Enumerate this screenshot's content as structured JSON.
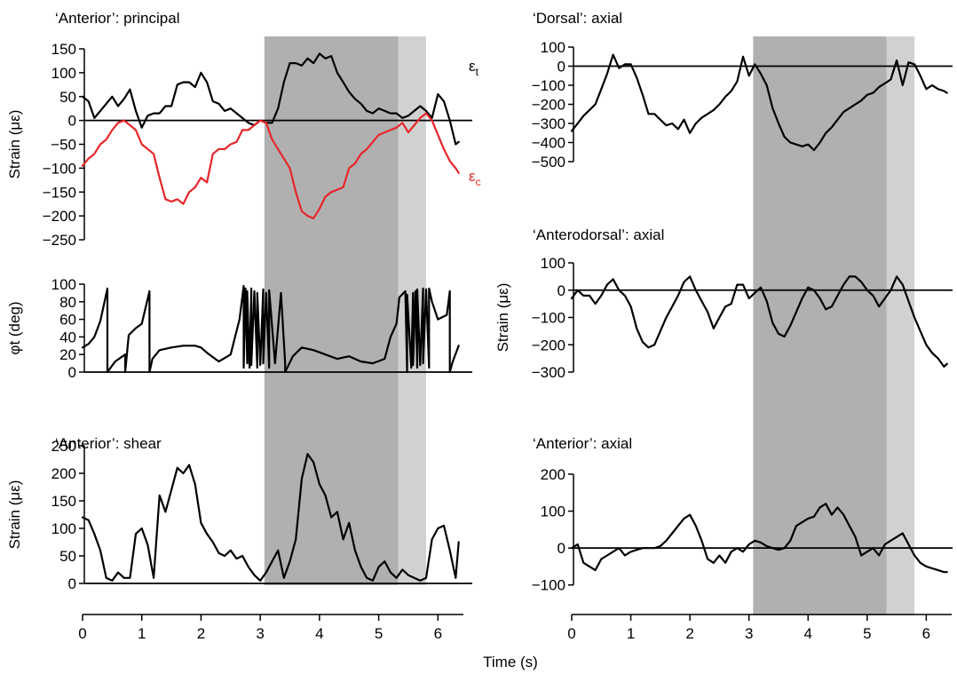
{
  "colors": {
    "dark_band": "#b0b0b0",
    "light_band": "#d0d2d1",
    "black_series": "#000000",
    "red_series": "#e8262b"
  },
  "shared_x_axis": {
    "label": "Time (s)",
    "ticks": [
      0,
      1,
      2,
      3,
      4,
      5,
      6
    ],
    "range": [
      0,
      6.4
    ]
  },
  "shaded_regions": [
    {
      "shade": "dark",
      "from": 3.07,
      "to": 5.33
    },
    {
      "shade": "light",
      "from": 5.33,
      "to": 5.8
    }
  ],
  "chart_data": [
    {
      "id": "anterior-principal",
      "type": "line",
      "title": "‘Anterior’: principal",
      "ylabel": "Strain (με)",
      "ylim": [
        -250,
        150
      ],
      "yticks": [
        150,
        100,
        50,
        0,
        -50,
        -100,
        -150,
        -200,
        -250
      ],
      "ytick_labels": [
        "150",
        "100",
        "50",
        "0",
        "−50",
        "−100",
        "−150",
        "−200",
        "−250"
      ],
      "series": [
        {
          "name": "εt",
          "color": "#000000",
          "x": [
            0,
            0.1,
            0.2,
            0.3,
            0.4,
            0.5,
            0.6,
            0.7,
            0.8,
            0.9,
            1.0,
            1.1,
            1.2,
            1.3,
            1.4,
            1.5,
            1.6,
            1.7,
            1.8,
            1.9,
            2.0,
            2.1,
            2.2,
            2.3,
            2.4,
            2.5,
            2.6,
            2.7,
            2.8,
            2.9,
            3.0,
            3.1,
            3.2,
            3.3,
            3.4,
            3.5,
            3.6,
            3.7,
            3.8,
            3.9,
            4.0,
            4.1,
            4.2,
            4.3,
            4.4,
            4.5,
            4.6,
            4.7,
            4.8,
            4.9,
            5.0,
            5.1,
            5.2,
            5.3,
            5.4,
            5.5,
            5.6,
            5.7,
            5.8,
            5.9,
            6.0,
            6.1,
            6.2,
            6.3,
            6.35
          ],
          "y": [
            50,
            40,
            5,
            20,
            35,
            50,
            30,
            45,
            65,
            20,
            -15,
            10,
            15,
            15,
            30,
            30,
            75,
            80,
            80,
            70,
            100,
            80,
            40,
            35,
            20,
            25,
            15,
            5,
            -5,
            -10,
            0,
            -5,
            -5,
            25,
            80,
            120,
            120,
            115,
            130,
            120,
            140,
            130,
            135,
            100,
            80,
            60,
            45,
            35,
            20,
            15,
            25,
            20,
            15,
            15,
            5,
            10,
            20,
            30,
            20,
            5,
            55,
            40,
            0,
            -50,
            -45
          ]
        },
        {
          "name": "εc",
          "color": "#e8262b",
          "x": [
            0,
            0.1,
            0.2,
            0.3,
            0.4,
            0.5,
            0.6,
            0.7,
            0.8,
            0.9,
            1.0,
            1.1,
            1.2,
            1.3,
            1.4,
            1.5,
            1.6,
            1.7,
            1.8,
            1.9,
            2.0,
            2.1,
            2.2,
            2.3,
            2.4,
            2.5,
            2.6,
            2.7,
            2.8,
            2.9,
            3.0,
            3.1,
            3.2,
            3.3,
            3.4,
            3.5,
            3.6,
            3.7,
            3.8,
            3.9,
            4.0,
            4.1,
            4.2,
            4.3,
            4.4,
            4.5,
            4.6,
            4.7,
            4.8,
            4.9,
            5.0,
            5.1,
            5.2,
            5.3,
            5.4,
            5.5,
            5.6,
            5.7,
            5.8,
            5.9,
            6.0,
            6.1,
            6.2,
            6.3,
            6.35
          ],
          "y": [
            -95,
            -80,
            -70,
            -50,
            -40,
            -20,
            -5,
            0,
            -10,
            -20,
            -50,
            -60,
            -70,
            -120,
            -165,
            -170,
            -165,
            -175,
            -150,
            -140,
            -120,
            -130,
            -70,
            -60,
            -60,
            -50,
            -45,
            -20,
            -20,
            -10,
            0,
            -5,
            -40,
            -60,
            -80,
            -100,
            -150,
            -190,
            -200,
            -205,
            -185,
            -160,
            -150,
            -145,
            -140,
            -100,
            -90,
            -70,
            -60,
            -45,
            -30,
            -25,
            -20,
            -15,
            -5,
            -25,
            -10,
            5,
            15,
            0,
            -30,
            -60,
            -85,
            -100,
            -110
          ]
        }
      ]
    },
    {
      "id": "phi-t",
      "type": "line",
      "title": "",
      "ylabel": "φt (deg)",
      "ylim": [
        0,
        100
      ],
      "yticks": [
        100,
        80,
        60,
        40,
        20,
        0
      ],
      "ytick_labels": [
        "100",
        "80",
        "60",
        "40",
        "20",
        "0"
      ],
      "series": [
        {
          "name": "",
          "color": "#000000",
          "x": [
            0,
            0.1,
            0.2,
            0.3,
            0.42,
            0.42,
            0.55,
            0.72,
            0.72,
            0.78,
            0.9,
            1.0,
            1.13,
            1.13,
            1.18,
            1.3,
            1.5,
            1.7,
            1.9,
            2.0,
            2.1,
            2.3,
            2.5,
            2.65,
            2.72,
            2.72,
            2.75,
            2.78,
            2.78,
            2.82,
            2.85,
            2.85,
            2.9,
            2.95,
            2.95,
            3.0,
            3.05,
            3.05,
            3.1,
            3.15,
            3.15,
            3.25,
            3.35,
            3.42,
            3.42,
            3.55,
            3.7,
            3.9,
            4.1,
            4.3,
            4.5,
            4.7,
            4.9,
            5.1,
            5.2,
            5.3,
            5.35,
            5.45,
            5.48,
            5.48,
            5.55,
            5.58,
            5.58,
            5.62,
            5.65,
            5.65,
            5.7,
            5.75,
            5.75,
            5.8,
            5.85,
            5.85,
            5.9,
            6.0,
            6.15,
            6.2,
            6.2,
            6.25,
            6.35
          ],
          "y": [
            28,
            32,
            40,
            58,
            95,
            0,
            12,
            20,
            0,
            42,
            50,
            55,
            92,
            0,
            15,
            25,
            28,
            30,
            30,
            28,
            22,
            12,
            20,
            60,
            98,
            5,
            95,
            10,
            92,
            5,
            95,
            8,
            92,
            5,
            90,
            8,
            94,
            10,
            90,
            5,
            93,
            10,
            90,
            10,
            0,
            18,
            28,
            25,
            20,
            15,
            18,
            12,
            10,
            15,
            40,
            55,
            85,
            92,
            0,
            88,
            5,
            90,
            8,
            92,
            5,
            94,
            8,
            95,
            10,
            94,
            5,
            95,
            80,
            60,
            65,
            92,
            0,
            12,
            30
          ]
        }
      ]
    },
    {
      "id": "anterior-shear",
      "type": "line",
      "title": "‘Anterior’: shear",
      "ylabel": "Strain (με)",
      "ylim": [
        0,
        250
      ],
      "yticks": [
        250,
        200,
        150,
        100,
        50,
        0
      ],
      "ytick_labels": [
        "250",
        "200",
        "150",
        "100",
        "50",
        "0"
      ],
      "series": [
        {
          "name": "",
          "color": "#000000",
          "x": [
            0,
            0.1,
            0.2,
            0.3,
            0.4,
            0.5,
            0.6,
            0.7,
            0.8,
            0.9,
            1.0,
            1.1,
            1.2,
            1.3,
            1.4,
            1.5,
            1.6,
            1.7,
            1.8,
            1.9,
            2.0,
            2.1,
            2.2,
            2.3,
            2.4,
            2.5,
            2.6,
            2.7,
            2.8,
            2.9,
            3.0,
            3.1,
            3.2,
            3.3,
            3.4,
            3.5,
            3.6,
            3.7,
            3.8,
            3.9,
            4.0,
            4.1,
            4.2,
            4.3,
            4.4,
            4.5,
            4.6,
            4.7,
            4.8,
            4.9,
            5.0,
            5.1,
            5.2,
            5.3,
            5.4,
            5.5,
            5.6,
            5.7,
            5.8,
            5.9,
            6.0,
            6.1,
            6.2,
            6.3,
            6.35
          ],
          "y": [
            120,
            115,
            90,
            60,
            10,
            5,
            20,
            10,
            10,
            90,
            100,
            70,
            10,
            160,
            130,
            170,
            210,
            200,
            215,
            180,
            110,
            90,
            75,
            55,
            50,
            60,
            45,
            50,
            30,
            15,
            5,
            20,
            40,
            60,
            10,
            40,
            80,
            190,
            235,
            220,
            180,
            160,
            120,
            130,
            80,
            110,
            60,
            30,
            10,
            5,
            30,
            40,
            20,
            10,
            25,
            15,
            10,
            5,
            10,
            80,
            100,
            105,
            60,
            10,
            75
          ]
        }
      ]
    },
    {
      "id": "dorsal-axial",
      "type": "line",
      "title": "‘Dorsal’: axial",
      "ylabel": "",
      "ylim": [
        -500,
        100
      ],
      "yticks": [
        100,
        0,
        -100,
        -200,
        -300,
        -400,
        -500
      ],
      "ytick_labels": [
        "100",
        "0",
        "−100",
        "−200",
        "−300",
        "−400",
        "−500"
      ],
      "series": [
        {
          "name": "",
          "color": "#000000",
          "x": [
            0,
            0.1,
            0.2,
            0.3,
            0.4,
            0.5,
            0.6,
            0.7,
            0.8,
            0.9,
            1.0,
            1.1,
            1.2,
            1.3,
            1.4,
            1.5,
            1.6,
            1.7,
            1.8,
            1.9,
            2.0,
            2.1,
            2.2,
            2.3,
            2.4,
            2.5,
            2.6,
            2.7,
            2.8,
            2.9,
            3.0,
            3.1,
            3.2,
            3.3,
            3.4,
            3.5,
            3.6,
            3.7,
            3.8,
            3.9,
            4.0,
            4.1,
            4.2,
            4.3,
            4.4,
            4.5,
            4.6,
            4.7,
            4.8,
            4.9,
            5.0,
            5.1,
            5.2,
            5.3,
            5.4,
            5.5,
            5.6,
            5.7,
            5.8,
            5.9,
            6.0,
            6.1,
            6.2,
            6.3,
            6.35
          ],
          "y": [
            -340,
            -300,
            -260,
            -230,
            -200,
            -120,
            -40,
            60,
            -10,
            10,
            10,
            -60,
            -150,
            -250,
            -250,
            -280,
            -310,
            -300,
            -330,
            -280,
            -350,
            -300,
            -270,
            -250,
            -230,
            -200,
            -160,
            -130,
            -80,
            50,
            -50,
            10,
            -40,
            -100,
            -220,
            -300,
            -370,
            -400,
            -410,
            -420,
            -410,
            -440,
            -400,
            -350,
            -320,
            -280,
            -240,
            -220,
            -200,
            -180,
            -150,
            -140,
            -110,
            -90,
            -70,
            30,
            -100,
            20,
            10,
            -50,
            -120,
            -100,
            -120,
            -130,
            -140
          ]
        }
      ]
    },
    {
      "id": "anterodorsal-axial",
      "type": "line",
      "title": "‘Anterodorsal’: axial",
      "ylabel": "Strain (με)",
      "ylim": [
        -300,
        100
      ],
      "yticks": [
        100,
        0,
        -100,
        -200,
        -300
      ],
      "ytick_labels": [
        "100",
        "0",
        "−100",
        "−200",
        "−300"
      ],
      "series": [
        {
          "name": "",
          "color": "#000000",
          "x": [
            0,
            0.1,
            0.2,
            0.3,
            0.4,
            0.5,
            0.6,
            0.7,
            0.8,
            0.9,
            1.0,
            1.1,
            1.2,
            1.3,
            1.4,
            1.5,
            1.6,
            1.7,
            1.8,
            1.9,
            2.0,
            2.1,
            2.2,
            2.3,
            2.4,
            2.5,
            2.6,
            2.7,
            2.8,
            2.9,
            3.0,
            3.1,
            3.2,
            3.3,
            3.4,
            3.5,
            3.6,
            3.7,
            3.8,
            3.9,
            4.0,
            4.1,
            4.2,
            4.3,
            4.4,
            4.5,
            4.6,
            4.7,
            4.8,
            4.9,
            5.0,
            5.1,
            5.2,
            5.3,
            5.4,
            5.5,
            5.6,
            5.7,
            5.8,
            5.9,
            6.0,
            6.1,
            6.2,
            6.3,
            6.35
          ],
          "y": [
            -30,
            0,
            -20,
            -20,
            -50,
            -20,
            20,
            40,
            0,
            -20,
            -60,
            -140,
            -190,
            -210,
            -200,
            -150,
            -100,
            -60,
            -20,
            30,
            50,
            0,
            -40,
            -80,
            -140,
            -100,
            -60,
            -50,
            20,
            20,
            -30,
            -10,
            10,
            -40,
            -120,
            -160,
            -170,
            -130,
            -80,
            -30,
            10,
            0,
            -30,
            -70,
            -60,
            -20,
            20,
            50,
            50,
            30,
            0,
            -20,
            -60,
            -30,
            0,
            50,
            20,
            -40,
            -100,
            -150,
            -200,
            -230,
            -250,
            -280,
            -270
          ]
        }
      ]
    },
    {
      "id": "anterior-axial",
      "type": "line",
      "title": "‘Anterior’: axial",
      "ylabel": "",
      "ylim": [
        -180,
        200
      ],
      "yticks": [
        200,
        100,
        0,
        -100
      ],
      "ytick_labels": [
        "200",
        "100",
        "0",
        "−100"
      ],
      "series": [
        {
          "name": "",
          "color": "#000000",
          "x": [
            0,
            0.1,
            0.2,
            0.3,
            0.4,
            0.5,
            0.6,
            0.7,
            0.8,
            0.9,
            1.0,
            1.1,
            1.2,
            1.3,
            1.4,
            1.5,
            1.6,
            1.7,
            1.8,
            1.9,
            2.0,
            2.1,
            2.2,
            2.3,
            2.4,
            2.5,
            2.6,
            2.7,
            2.8,
            2.9,
            3.0,
            3.1,
            3.2,
            3.3,
            3.4,
            3.5,
            3.6,
            3.7,
            3.8,
            3.9,
            4.0,
            4.1,
            4.2,
            4.3,
            4.4,
            4.5,
            4.6,
            4.7,
            4.8,
            4.9,
            5.0,
            5.1,
            5.2,
            5.3,
            5.4,
            5.5,
            5.6,
            5.7,
            5.8,
            5.9,
            6.0,
            6.1,
            6.2,
            6.3,
            6.35
          ],
          "y": [
            0,
            10,
            -40,
            -50,
            -60,
            -30,
            -20,
            -10,
            0,
            -20,
            -10,
            -5,
            0,
            0,
            0,
            5,
            20,
            40,
            60,
            80,
            90,
            60,
            20,
            -30,
            -40,
            -20,
            -40,
            -10,
            0,
            -10,
            10,
            20,
            15,
            5,
            0,
            -5,
            0,
            20,
            60,
            70,
            80,
            85,
            110,
            120,
            90,
            110,
            90,
            60,
            30,
            -20,
            -10,
            0,
            -20,
            10,
            20,
            30,
            40,
            10,
            -20,
            -40,
            -50,
            -55,
            -60,
            -65,
            -65
          ]
        }
      ]
    }
  ],
  "series_labels": {
    "et_main": "ε",
    "et_sub": "t",
    "ec_main": "ε",
    "ec_sub": "c"
  }
}
